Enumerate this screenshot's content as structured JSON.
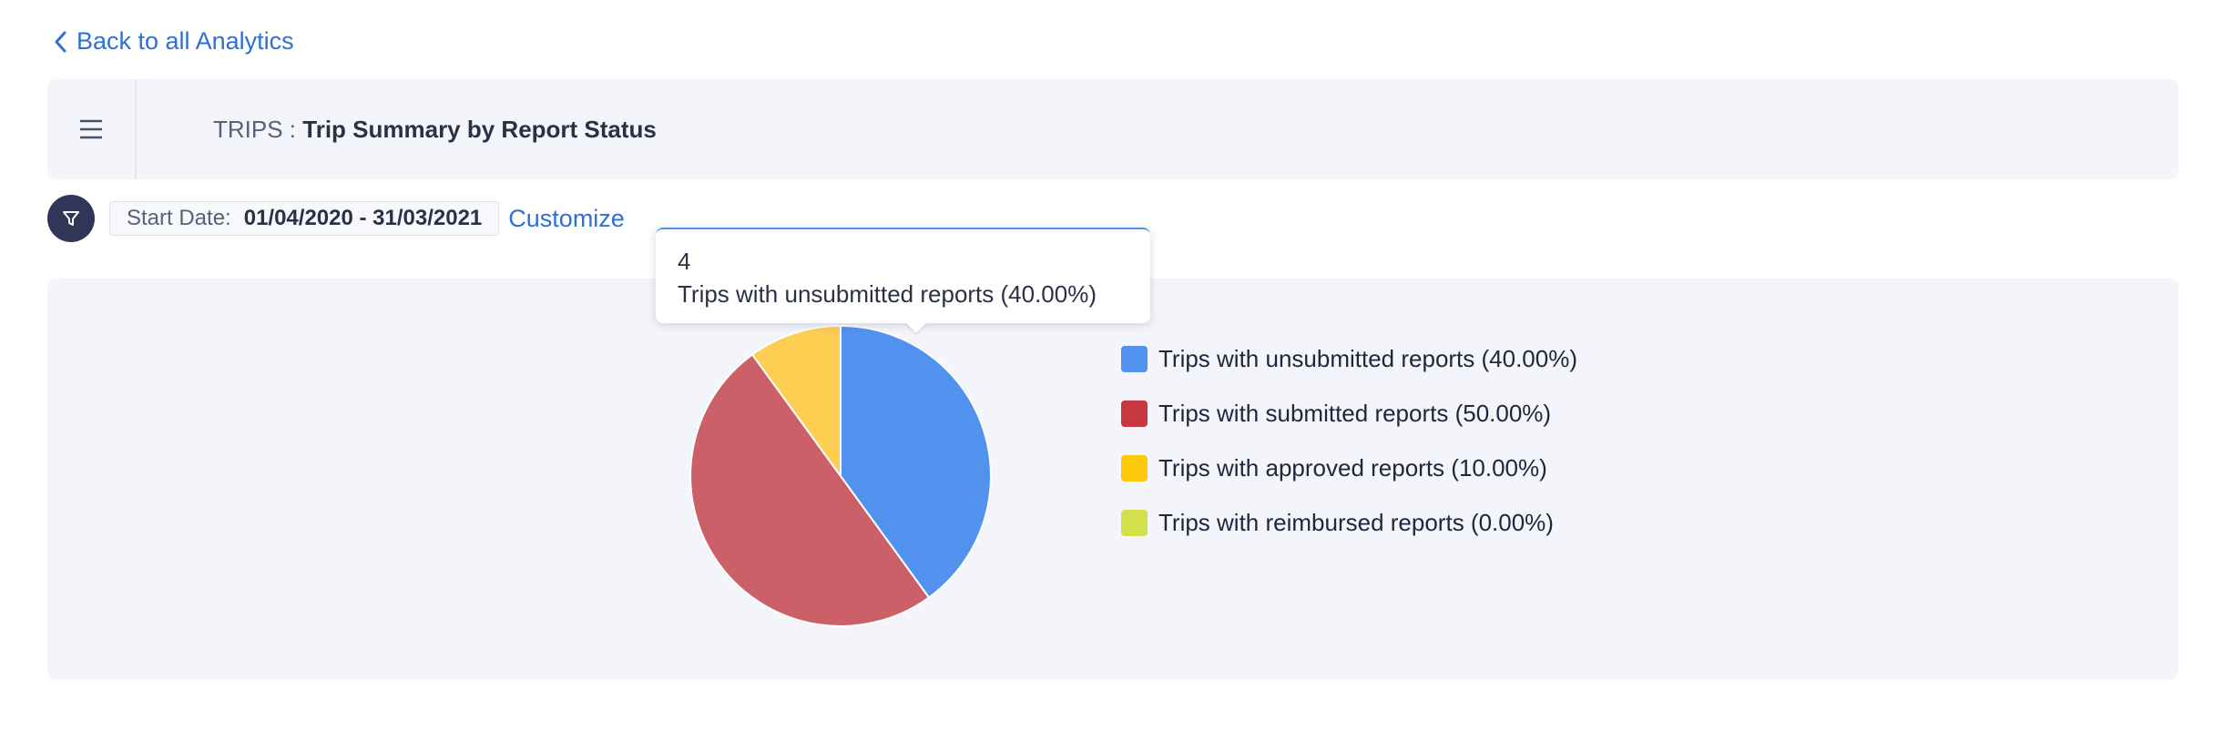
{
  "nav": {
    "back_label": "Back to all Analytics"
  },
  "header": {
    "module": "TRIPS :",
    "report_title": "Trip Summary by Report Status"
  },
  "filter": {
    "label": "Start Date:",
    "value": "01/04/2020 - 31/03/2021",
    "customize_label": "Customize"
  },
  "tooltip": {
    "value": "4",
    "label": "Trips with unsubmitted reports (40.00%)"
  },
  "icons": {
    "back": "chevron-left-icon",
    "menu": "hamburger-menu-icon",
    "filter": "funnel-icon"
  },
  "colors": {
    "accent": "#2f6fd6",
    "filter_button": "#2f3658",
    "panel": "#f4f5fb"
  },
  "chart_data": {
    "type": "pie",
    "categories": [
      "Trips with unsubmitted reports (40.00%)",
      "Trips with submitted reports (50.00%)",
      "Trips with approved reports (10.00%)",
      "Trips with reimbursed reports (0.00%)"
    ],
    "values": [
      4,
      5,
      1,
      0
    ],
    "colors": [
      "#5292ef",
      "#cb6069",
      "#fcce52",
      "#d4e04a"
    ],
    "legend_colors": [
      "#5292ef",
      "#c6373f",
      "#fcc80a",
      "#d4e04a"
    ],
    "legend_position": "right"
  }
}
